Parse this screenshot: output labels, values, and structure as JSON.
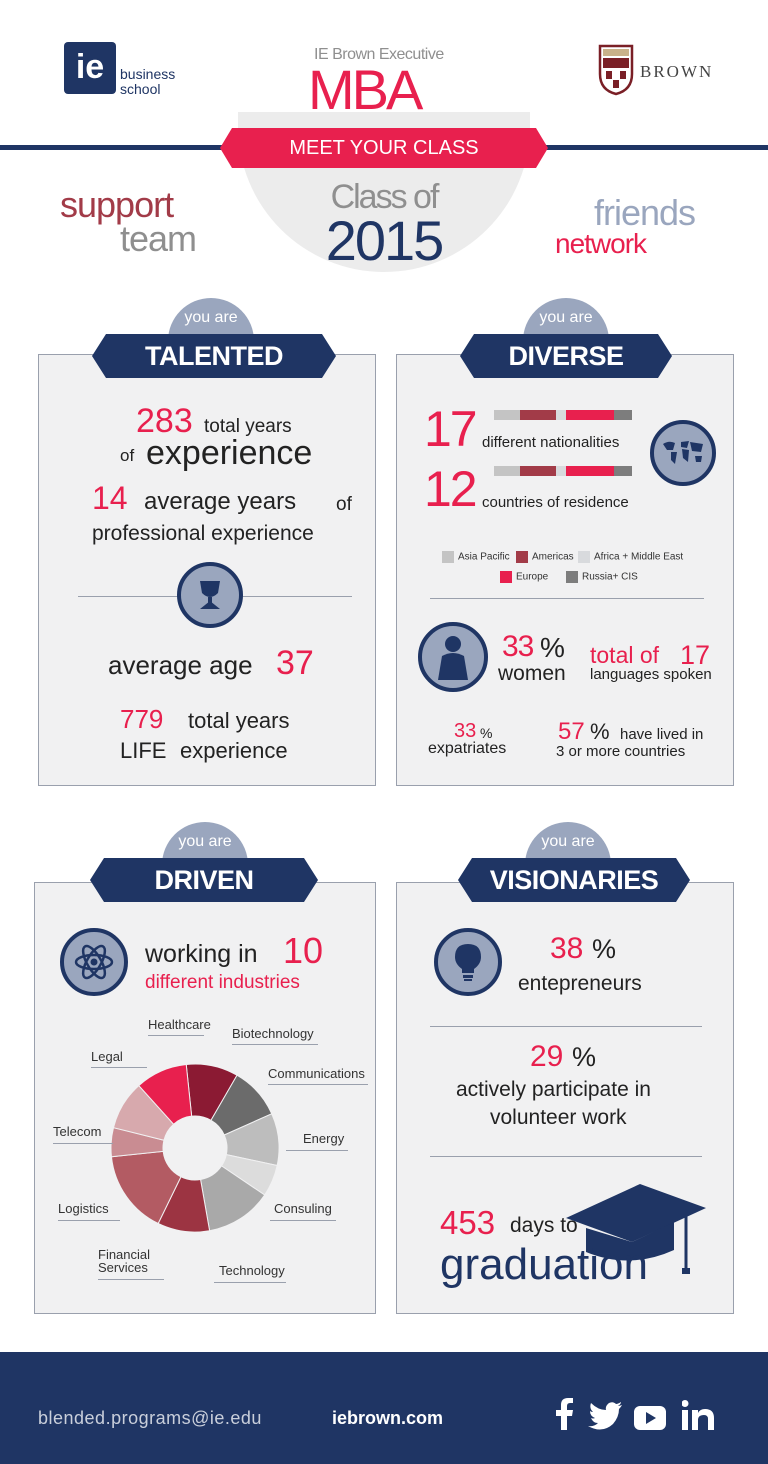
{
  "header": {
    "ie_logo_mark": "ie",
    "ie_logo_line1": "business",
    "ie_logo_line2": "school",
    "program_top": "IE Brown Executive",
    "program_big": "MBA",
    "brown_logo": "BROWN",
    "ribbon": "MEET YOUR CLASS",
    "class_of": "Class of",
    "year": "2015",
    "left_word1": "support",
    "left_word2": "team",
    "right_word1": "friends",
    "right_word2": "network"
  },
  "talented": {
    "you_are": "you are",
    "title": "TALENTED",
    "years_exp_num": "283",
    "years_exp_text1": "total years",
    "years_exp_of": "of",
    "years_exp_text2": "experience",
    "avg_years_num": "14",
    "avg_years_text": "average years",
    "avg_years_of": "of",
    "avg_years_text2": "professional experience",
    "avg_age_text": "average age",
    "avg_age_num": "37",
    "life_num": "779",
    "life_text1": "total years",
    "life_text2": "LIFE",
    "life_text3": "experience"
  },
  "diverse": {
    "you_are": "you are",
    "title": "DIVERSE",
    "nationalities_num": "17",
    "nationalities_text": "different nationalities",
    "residence_num": "12",
    "residence_text": "countries of residence",
    "legend": [
      {
        "label": "Asia Pacific",
        "color": "#c4c4c4"
      },
      {
        "label": "Americas",
        "color": "#a23b48"
      },
      {
        "label": "Africa + Middle East",
        "color": "#d8dadd"
      },
      {
        "label": "Europe",
        "color": "#e8204e"
      },
      {
        "label": "Russia+ CIS",
        "color": "#7d7d7d"
      }
    ],
    "women_num": "33",
    "women_pct": "%",
    "women_text": "women",
    "lang_text": "total of",
    "lang_num": "17",
    "lang_text2": "languages spoken",
    "expat_num": "33",
    "expat_pct": "%",
    "expat_text": "expatriates",
    "lived_num": "57",
    "lived_pct": "%",
    "lived_text1": "have lived in",
    "lived_text2": "3 or more countries"
  },
  "driven": {
    "you_are": "you are",
    "title": "DRIVEN",
    "working_text": "working in",
    "industries_num": "10",
    "industries_text": "different industries",
    "industries": [
      "Healthcare",
      "Biotechnology",
      "Communications",
      "Energy",
      "Consuling",
      "Technology",
      "Financial Services",
      "Logistics",
      "Telecom",
      "Legal"
    ],
    "financial_line1": "Financial",
    "financial_line2": "Services"
  },
  "visionaries": {
    "you_are": "you are",
    "title": "VISIONARIES",
    "entre_num": "38",
    "entre_pct": "%",
    "entre_text": "entepreneurs",
    "vol_num": "29",
    "vol_pct": "%",
    "vol_text1": "actively participate in",
    "vol_text2": "volunteer work",
    "days_num": "453",
    "days_text": "days to",
    "grad_text": "graduation"
  },
  "footer": {
    "email": "blended.programs@ie.edu",
    "website": "iebrown.com",
    "social": [
      "facebook-icon",
      "twitter-icon",
      "youtube-icon",
      "linkedin-icon"
    ]
  },
  "colors": {
    "navy": "#1f3564",
    "red": "#e8204e",
    "maroon": "#a23b48",
    "grey": "#9aa6be"
  }
}
